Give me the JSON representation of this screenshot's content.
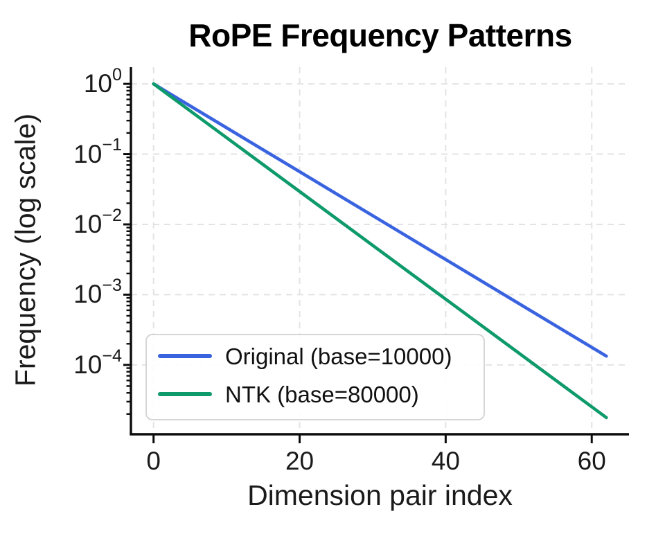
{
  "title": "RoPE Frequency Patterns",
  "chart_data": {
    "type": "line",
    "title": "RoPE Frequency Patterns",
    "xlabel": "Dimension pair index",
    "ylabel": "Frequency (log scale)",
    "yscale": "log",
    "grid": "major only, light gray dashed",
    "legend_position": "lower left",
    "xlim": [
      -3.1,
      65.1
    ],
    "ylim": [
      1.03e-05,
      1.728
    ],
    "x": [
      0,
      10,
      20,
      30,
      40,
      50,
      62
    ],
    "series": [
      {
        "name": "Original (base=10000)",
        "color": "#3a63e0",
        "values": [
          1.0,
          0.23714,
          0.056234,
          0.0133352,
          0.00316228,
          0.000749894,
          0.000133352
        ]
      },
      {
        "name": "NTK (base=80000)",
        "color": "#0e9a6b",
        "values": [
          1.0,
          0.171338,
          0.029363,
          0.0050314,
          0.0008621,
          0.000147755,
          1.77885e-05
        ]
      }
    ],
    "xticks": [
      {
        "value": 0,
        "label": "0"
      },
      {
        "value": 20,
        "label": "20"
      },
      {
        "value": 40,
        "label": "40"
      },
      {
        "value": 60,
        "label": "60"
      }
    ],
    "yticks": [
      {
        "value": 1,
        "base": "10",
        "exp": "0"
      },
      {
        "value": 0.1,
        "base": "10",
        "exp": "−1"
      },
      {
        "value": 0.01,
        "base": "10",
        "exp": "−2"
      },
      {
        "value": 0.001,
        "base": "10",
        "exp": "−3"
      },
      {
        "value": 0.0001,
        "base": "10",
        "exp": "−4"
      }
    ]
  }
}
